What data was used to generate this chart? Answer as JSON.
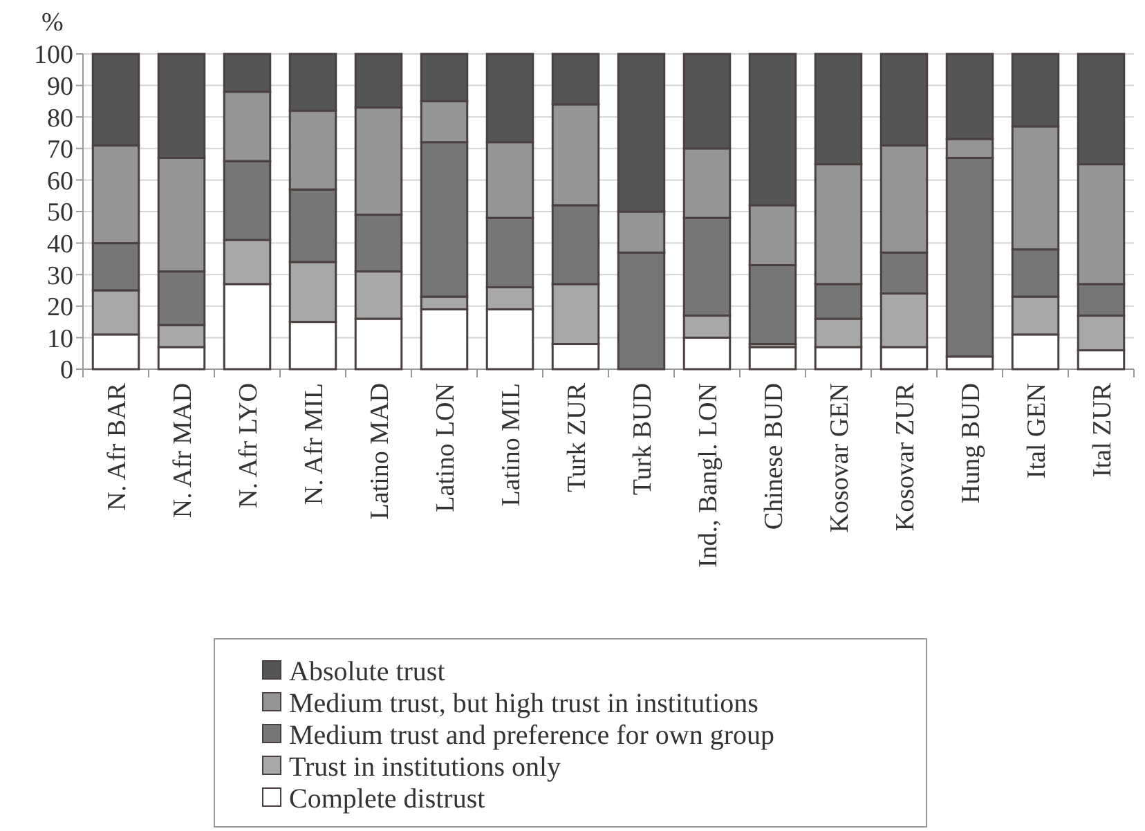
{
  "chart_data": {
    "type": "bar",
    "stacked": true,
    "ylabel": "%",
    "ylim": [
      0,
      100
    ],
    "yticks": [
      0,
      10,
      20,
      30,
      40,
      50,
      60,
      70,
      80,
      90,
      100
    ],
    "grid": "y",
    "legend": "bottom",
    "categories": [
      "N. Afr BAR",
      "N. Afr MAD",
      "N. Afr LYO",
      "N. Afr MIL",
      "Latino MAD",
      "Latino LON",
      "Latino MIL",
      "Turk ZUR",
      "Turk BUD",
      "Ind., Bangl. LON",
      "Chinese BUD",
      "Kosovar GEN",
      "Kosovar ZUR",
      "Hung BUD",
      "Ital GEN",
      "Ital ZUR"
    ],
    "series": [
      {
        "name": "Complete distrust",
        "color": "#ffffff",
        "values": [
          11,
          7,
          27,
          15,
          16,
          19,
          19,
          8,
          0,
          10,
          7,
          7,
          7,
          4,
          11,
          6
        ]
      },
      {
        "name": "Trust in institutions only",
        "color": "#a8a8a8",
        "values": [
          14,
          7,
          14,
          19,
          15,
          4,
          7,
          19,
          0,
          7,
          1,
          9,
          17,
          0,
          12,
          11
        ]
      },
      {
        "name": "Medium trust and preference for own group",
        "color": "#767676",
        "values": [
          15,
          17,
          25,
          23,
          18,
          49,
          22,
          25,
          37,
          31,
          25,
          11,
          13,
          63,
          15,
          10
        ]
      },
      {
        "name": "Medium trust, but high trust in institutions",
        "color": "#959595",
        "values": [
          31,
          36,
          22,
          25,
          34,
          13,
          24,
          32,
          13,
          22,
          19,
          38,
          34,
          6,
          39,
          38
        ]
      },
      {
        "name": "Absolute trust",
        "color": "#555555",
        "values": [
          29,
          33,
          12,
          18,
          17,
          15,
          28,
          16,
          50,
          30,
          48,
          35,
          29,
          27,
          23,
          35
        ]
      }
    ]
  }
}
